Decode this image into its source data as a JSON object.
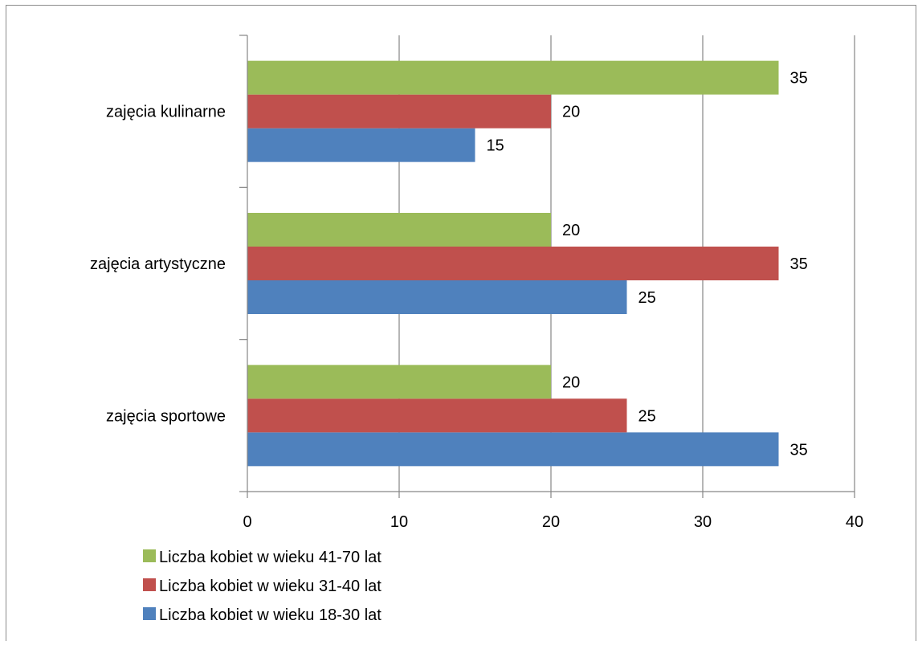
{
  "chart_data": {
    "type": "bar",
    "orientation": "horizontal",
    "title": "",
    "xlabel": "",
    "ylabel": "",
    "categories": [
      "zajęcia sportowe",
      "zajęcia artystyczne",
      "zajęcia kulinarne"
    ],
    "series": [
      {
        "name": "Liczba kobiet w wieku 18-30 lat",
        "values": [
          35,
          25,
          15
        ],
        "color": "#4f81bd"
      },
      {
        "name": "Liczba kobiet w wieku 31-40 lat",
        "values": [
          25,
          35,
          20
        ],
        "color": "#c0504d"
      },
      {
        "name": "Liczba kobiet w wieku 41-70 lat",
        "values": [
          20,
          20,
          35
        ],
        "color": "#9bbb59"
      }
    ],
    "xlim": [
      0,
      40
    ],
    "xticks": [
      0,
      10,
      20,
      30,
      40
    ],
    "grid": "vertical",
    "data_labels": true,
    "legend_position": "bottom-left",
    "legend_order": [
      "Liczba kobiet w wieku 41-70 lat",
      "Liczba kobiet w wieku 31-40 lat",
      "Liczba kobiet w wieku 18-30 lat"
    ]
  }
}
